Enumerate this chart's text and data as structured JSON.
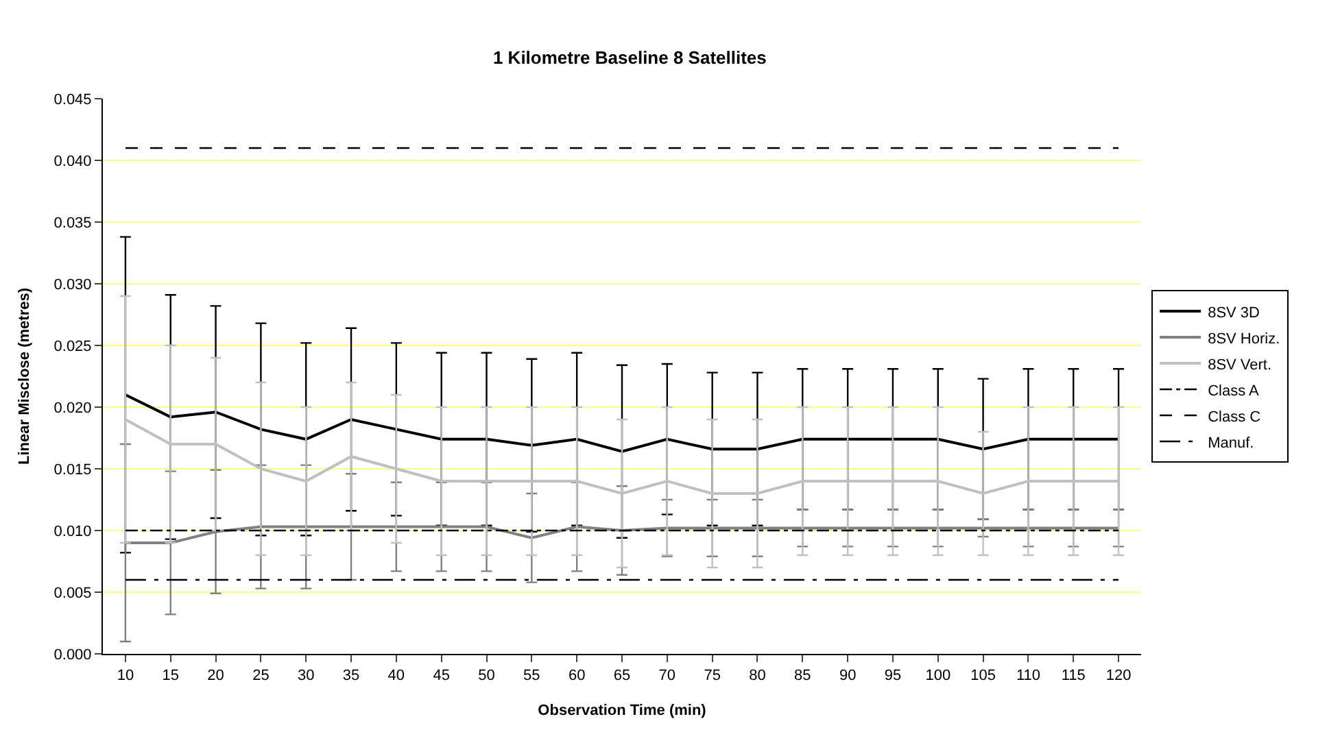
{
  "chart_data": {
    "type": "line",
    "title": "1 Kilometre Baseline 8 Satellites",
    "xlabel": "Observation Time (min)",
    "ylabel": "Linear Misclose (metres)",
    "categories": [
      "10",
      "15",
      "20",
      "25",
      "30",
      "35",
      "40",
      "45",
      "50",
      "55",
      "60",
      "65",
      "70",
      "75",
      "80",
      "85",
      "90",
      "95",
      "100",
      "105",
      "110",
      "115",
      "120"
    ],
    "series": [
      {
        "name": "8SV 3D",
        "color": "#000000",
        "values": [
          0.021,
          0.0192,
          0.0196,
          0.0182,
          0.0174,
          0.019,
          0.0182,
          0.0174,
          0.0174,
          0.0169,
          0.0174,
          0.0164,
          0.0174,
          0.0166,
          0.0166,
          0.0174,
          0.0174,
          0.0174,
          0.0174,
          0.0166,
          0.0174,
          0.0174,
          0.0174
        ],
        "errors": [
          0.0128,
          0.0099,
          0.0086,
          0.0086,
          0.0078,
          0.0074,
          0.007,
          0.007,
          0.007,
          0.007,
          0.007,
          0.007,
          0.0061,
          0.0062,
          0.0062,
          0.0057,
          0.0057,
          0.0057,
          0.0057,
          0.0057,
          0.0057,
          0.0057,
          0.0057
        ]
      },
      {
        "name": "8SV Horiz.",
        "color": "#808080",
        "values": [
          0.009,
          0.009,
          0.0099,
          0.0103,
          0.0103,
          0.0103,
          0.0103,
          0.0103,
          0.0103,
          0.0094,
          0.0103,
          0.01,
          0.0102,
          0.0102,
          0.0102,
          0.0102,
          0.0102,
          0.0102,
          0.0102,
          0.0102,
          0.0102,
          0.0102,
          0.0102
        ],
        "errors": [
          0.008,
          0.0058,
          0.005,
          0.005,
          0.005,
          0.0043,
          0.0036,
          0.0036,
          0.0036,
          0.0036,
          0.0036,
          0.0036,
          0.0023,
          0.0023,
          0.0023,
          0.0015,
          0.0015,
          0.0015,
          0.0015,
          0.0007,
          0.0015,
          0.0015,
          0.0015
        ]
      },
      {
        "name": "8SV Vert.",
        "color": "#c0c0c0",
        "values": [
          0.019,
          0.017,
          0.017,
          0.015,
          0.014,
          0.016,
          0.015,
          0.014,
          0.014,
          0.014,
          0.014,
          0.013,
          0.014,
          0.013,
          0.013,
          0.014,
          0.014,
          0.014,
          0.014,
          0.013,
          0.014,
          0.014,
          0.014
        ],
        "errors": [
          0.01,
          0.008,
          0.007,
          0.007,
          0.006,
          0.006,
          0.006,
          0.006,
          0.006,
          0.006,
          0.006,
          0.006,
          0.006,
          0.006,
          0.006,
          0.006,
          0.006,
          0.006,
          0.006,
          0.005,
          0.006,
          0.006,
          0.006
        ]
      }
    ],
    "ref_lines": [
      {
        "axis": "y",
        "value": 0.01,
        "label": "Class A",
        "color": "#000000",
        "line_style": "dashdot"
      },
      {
        "axis": "y",
        "value": 0.041,
        "label": "Class C",
        "color": "#000000",
        "line_style": "dashed"
      },
      {
        "axis": "y",
        "value": 0.006,
        "label": "Manuf.",
        "color": "#000000",
        "line_style": "longdashdot"
      }
    ],
    "ylim": [
      0,
      0.045
    ],
    "yticks": [
      {
        "value": 0,
        "label": "0.000"
      },
      {
        "value": 0.005,
        "label": "0.005"
      },
      {
        "value": 0.01,
        "label": "0.010"
      },
      {
        "value": 0.015,
        "label": "0.015"
      },
      {
        "value": 0.02,
        "label": "0.020"
      },
      {
        "value": 0.025,
        "label": "0.025"
      },
      {
        "value": 0.03,
        "label": "0.030"
      },
      {
        "value": 0.035,
        "label": "0.035"
      },
      {
        "value": 0.04,
        "label": "0.040"
      },
      {
        "value": 0.045,
        "label": "0.045"
      }
    ],
    "grid": "y",
    "legend": "right",
    "marker": "none",
    "line_style": "solid"
  }
}
